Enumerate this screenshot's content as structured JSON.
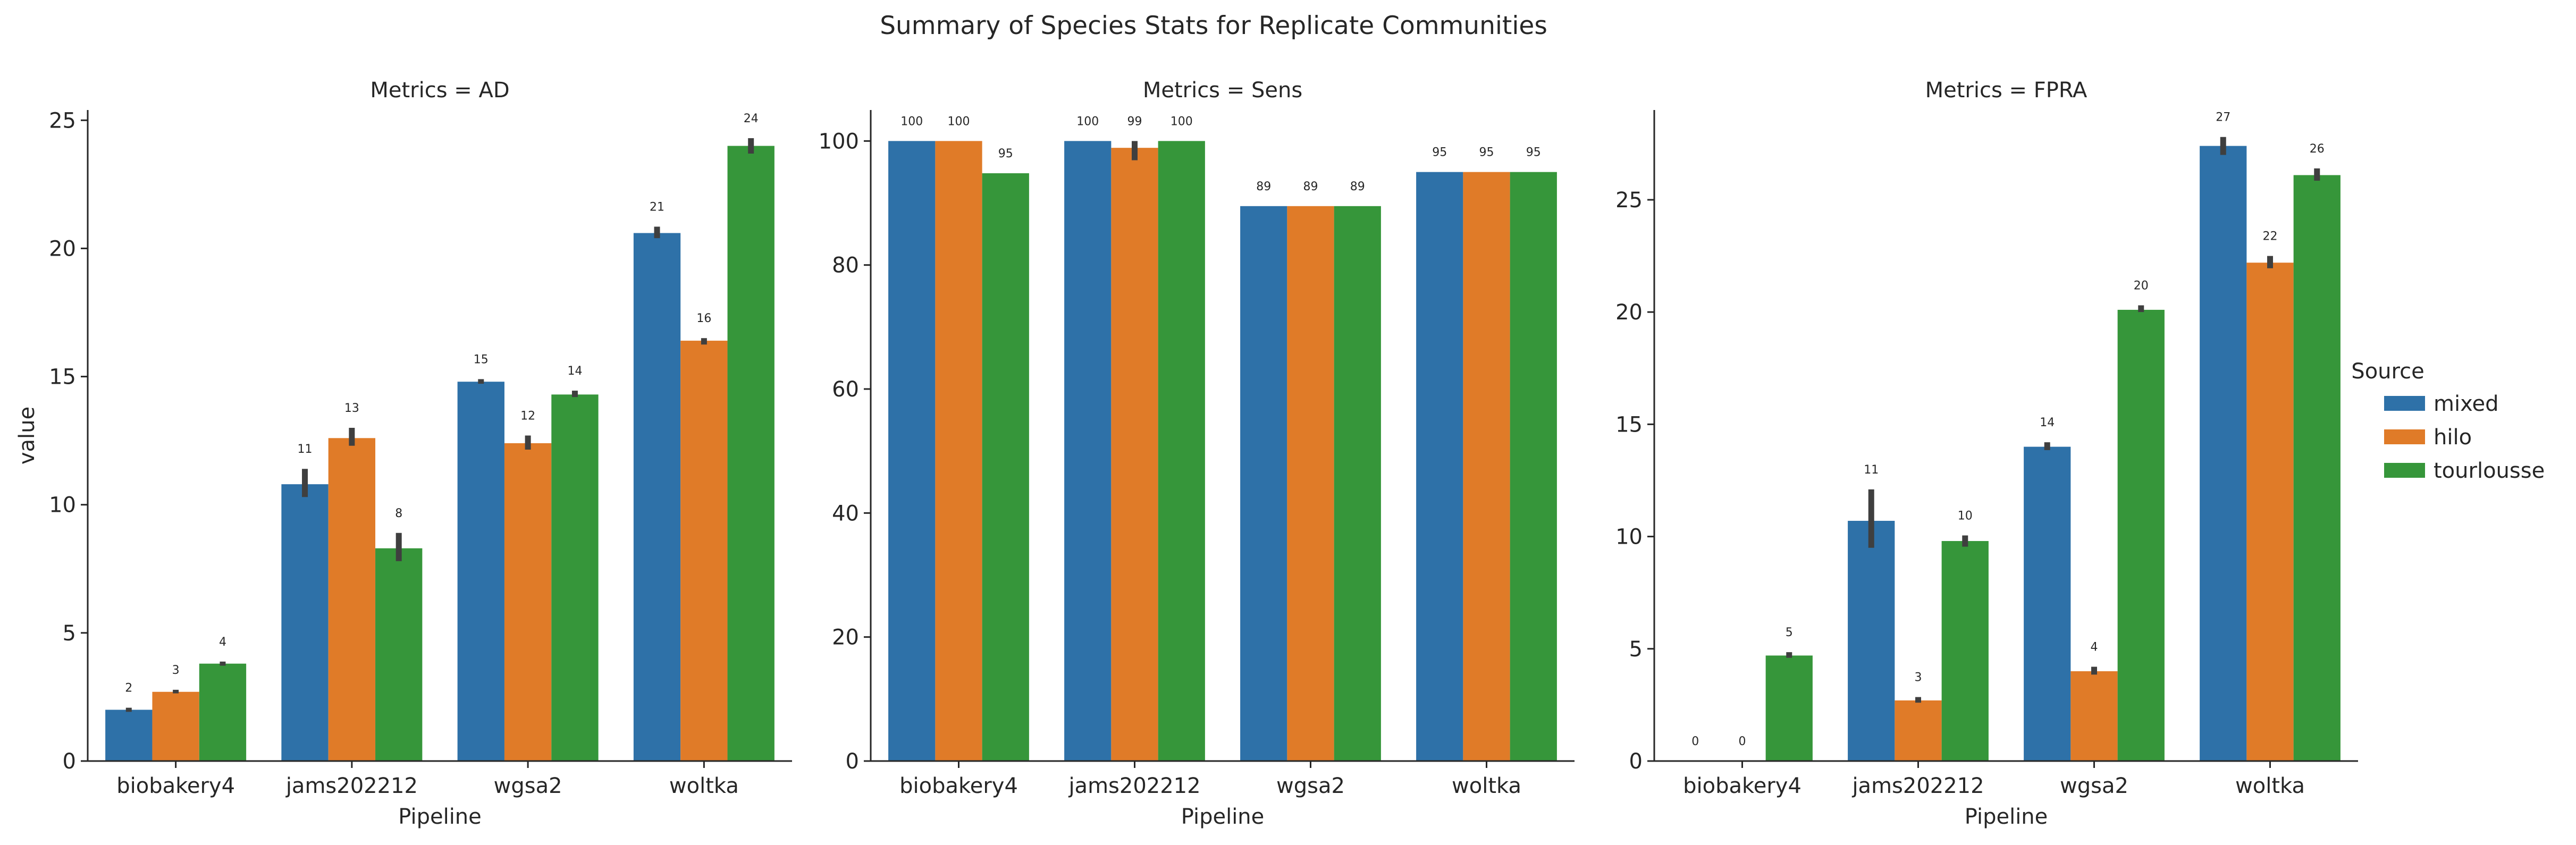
{
  "figure": {
    "suptitle": "Summary of Species Stats for Replicate Communities"
  },
  "legend": {
    "title": "Source",
    "position": "right"
  },
  "series_colors": {
    "mixed": "#2e71a8",
    "hilo": "#e07b28",
    "tourlousse": "#36963a"
  },
  "chart_data": [
    {
      "type": "bar",
      "title": "Metrics = AD",
      "xlabel": "Pipeline",
      "ylabel": "value",
      "ylim": [
        0,
        25.4
      ],
      "yticks": [
        0,
        5,
        10,
        15,
        20,
        25
      ],
      "categories": [
        "biobakery4",
        "jams202212",
        "wgsa2",
        "woltka"
      ],
      "series": [
        {
          "name": "mixed",
          "values": [
            2.0,
            10.8,
            14.8,
            20.6
          ],
          "errors": [
            [
              1.92,
              2.08
            ],
            [
              10.3,
              11.4
            ],
            [
              14.72,
              14.9
            ],
            [
              20.4,
              20.85
            ]
          ],
          "labels": [
            "2",
            "11",
            "15",
            "21"
          ]
        },
        {
          "name": "hilo",
          "values": [
            2.7,
            12.6,
            12.4,
            16.4
          ],
          "errors": [
            [
              2.64,
              2.78
            ],
            [
              12.3,
              13.0
            ],
            [
              12.15,
              12.7
            ],
            [
              16.25,
              16.5
            ]
          ],
          "labels": [
            "3",
            "13",
            "12",
            "16"
          ]
        },
        {
          "name": "tourlousse",
          "values": [
            3.8,
            8.3,
            14.3,
            24.0
          ],
          "errors": [
            [
              3.72,
              3.88
            ],
            [
              7.8,
              8.9
            ],
            [
              14.2,
              14.45
            ],
            [
              23.7,
              24.3
            ]
          ],
          "labels": [
            "4",
            "8",
            "14",
            "24"
          ]
        }
      ]
    },
    {
      "type": "bar",
      "title": "Metrics = Sens",
      "xlabel": "Pipeline",
      "ylabel": "",
      "ylim": [
        0,
        105
      ],
      "yticks": [
        0,
        20,
        40,
        60,
        80,
        100
      ],
      "categories": [
        "biobakery4",
        "jams202212",
        "wgsa2",
        "woltka"
      ],
      "series": [
        {
          "name": "mixed",
          "values": [
            100,
            100,
            89.5,
            95
          ],
          "errors": [
            null,
            null,
            null,
            null
          ],
          "labels": [
            "100",
            "100",
            "89",
            "95"
          ]
        },
        {
          "name": "hilo",
          "values": [
            100,
            98.9,
            89.5,
            95
          ],
          "errors": [
            null,
            [
              96.9,
              100
            ],
            null,
            null
          ],
          "labels": [
            "100",
            "99",
            "89",
            "95"
          ]
        },
        {
          "name": "tourlousse",
          "values": [
            94.8,
            100,
            89.5,
            95
          ],
          "errors": [
            null,
            null,
            null,
            null
          ],
          "labels": [
            "95",
            "100",
            "89",
            "95"
          ]
        }
      ]
    },
    {
      "type": "bar",
      "title": "Metrics = FPRA",
      "xlabel": "Pipeline",
      "ylabel": "",
      "ylim": [
        0,
        29
      ],
      "yticks": [
        0,
        5,
        10,
        15,
        20,
        25
      ],
      "categories": [
        "biobakery4",
        "jams202212",
        "wgsa2",
        "woltka"
      ],
      "series": [
        {
          "name": "mixed",
          "values": [
            0,
            10.7,
            14.0,
            27.4
          ],
          "errors": [
            null,
            [
              9.5,
              12.1
            ],
            [
              13.85,
              14.2
            ],
            [
              27.0,
              27.8
            ]
          ],
          "labels": [
            "0",
            "11",
            "14",
            "27"
          ]
        },
        {
          "name": "hilo",
          "values": [
            0,
            2.7,
            4.0,
            22.2
          ],
          "errors": [
            null,
            [
              2.6,
              2.85
            ],
            [
              3.85,
              4.2
            ],
            [
              21.95,
              22.5
            ]
          ],
          "labels": [
            "0",
            "3",
            "4",
            "22"
          ]
        },
        {
          "name": "tourlousse",
          "values": [
            4.7,
            9.8,
            20.1,
            26.1
          ],
          "errors": [
            [
              4.6,
              4.85
            ],
            [
              9.55,
              10.05
            ],
            [
              20.0,
              20.3
            ],
            [
              25.85,
              26.4
            ]
          ],
          "labels": [
            "5",
            "10",
            "20",
            "26"
          ]
        }
      ]
    }
  ]
}
